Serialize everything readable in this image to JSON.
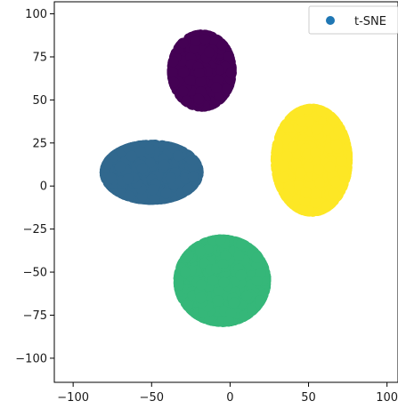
{
  "chart_data": {
    "type": "scatter",
    "title": "",
    "xlabel": "",
    "ylabel": "",
    "xlim": [
      -112,
      107
    ],
    "ylim": [
      -114,
      107
    ],
    "x_ticks": [
      -100,
      -50,
      0,
      50,
      100
    ],
    "x_tick_labels": [
      "−100",
      "−50",
      "0",
      "50",
      "100"
    ],
    "y_ticks": [
      -100,
      -75,
      -50,
      -25,
      0,
      25,
      50,
      75,
      100
    ],
    "y_tick_labels": [
      "−100",
      "−75",
      "−50",
      "−25",
      "0",
      "25",
      "50",
      "75",
      "100"
    ],
    "grid": false,
    "legend": {
      "placement": "top-right",
      "entries": [
        {
          "label": "t-SNE",
          "color": "#1f77b4"
        }
      ]
    },
    "series": [
      {
        "color": "#440154",
        "center": [
          -18,
          67
        ],
        "spread": [
          19,
          21
        ],
        "count": 650
      },
      {
        "color": "#31688e",
        "center": [
          -50,
          8
        ],
        "spread": [
          30,
          16
        ],
        "count": 1200
      },
      {
        "color": "#fde725",
        "center": [
          52,
          15
        ],
        "spread": [
          23,
          30
        ],
        "count": 1100
      },
      {
        "color": "#35b779",
        "center": [
          -5,
          -55
        ],
        "spread": [
          28,
          24
        ],
        "count": 1300
      }
    ]
  }
}
